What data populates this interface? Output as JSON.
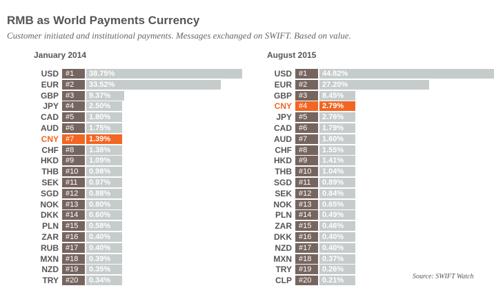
{
  "title": "RMB as World Payments Currency",
  "subtitle": "Customer initiated and institutional payments. Messages exchanged on SWIFT. Based on value.",
  "source": "Source: SWIFT Watch",
  "colors": {
    "highlight": "#f26522",
    "bar": "#c6cccc",
    "rank_box": "#76655f"
  },
  "chart_data": [
    {
      "type": "bar",
      "orientation": "horizontal",
      "title": "January 2014",
      "highlight": "CNY",
      "categories": [
        "USD",
        "EUR",
        "GBP",
        "JPY",
        "CAD",
        "AUD",
        "CNY",
        "CHF",
        "HKD",
        "THB",
        "SEK",
        "SGD",
        "NOK",
        "DKK",
        "PLN",
        "ZAR",
        "RUB",
        "MXN",
        "NZD",
        "TRY"
      ],
      "ranks": [
        "#1",
        "#2",
        "#3",
        "#4",
        "#5",
        "#6",
        "#7",
        "#8",
        "#9",
        "#10",
        "#11",
        "#12",
        "#13",
        "#14",
        "#15",
        "#16",
        "#17",
        "#18",
        "#19",
        "#20"
      ],
      "labels": [
        "38.75%",
        "33.52%",
        "9.37%",
        "2.50%",
        "1.80%",
        "1.75%",
        "1.39%",
        "1.38%",
        "1.09%",
        "0.98%",
        "0.97%",
        "0.88%",
        "0.80%",
        "0.60%",
        "0.58%",
        "0.40%",
        "0.40%",
        "0.39%",
        "0.35%",
        "0.34%"
      ],
      "values": [
        38.75,
        33.52,
        9.37,
        2.5,
        1.8,
        1.75,
        1.39,
        1.38,
        1.09,
        0.98,
        0.97,
        0.88,
        0.8,
        0.6,
        0.58,
        0.4,
        0.4,
        0.39,
        0.35,
        0.34
      ]
    },
    {
      "type": "bar",
      "orientation": "horizontal",
      "title": "August 2015",
      "highlight": "CNY",
      "categories": [
        "USD",
        "EUR",
        "GBP",
        "CNY",
        "JPY",
        "CAD",
        "AUD",
        "CHF",
        "HKD",
        "THB",
        "SGD",
        "SEK",
        "NOK",
        "PLN",
        "ZAR",
        "DKK",
        "NZD",
        "MXN",
        "TRY",
        "CLP"
      ],
      "ranks": [
        "#1",
        "#2",
        "#3",
        "#4",
        "#5",
        "#6",
        "#7",
        "#8",
        "#9",
        "#10",
        "#11",
        "#12",
        "#13",
        "#14",
        "#15",
        "#16",
        "#17",
        "#18",
        "#19",
        "#20"
      ],
      "labels": [
        "44.82%",
        "27.20%",
        "8.45%",
        "2.79%",
        "2.76%",
        "1.79%",
        "1.60%",
        "1.55%",
        "1.41%",
        "1.04%",
        "0.89%",
        "0.84%",
        "0.65%",
        "0.49%",
        "0.46%",
        "0.40%",
        "0.40%",
        "0.37%",
        "0.26%",
        "0.21%"
      ],
      "values": [
        44.82,
        27.2,
        8.45,
        2.79,
        2.76,
        1.79,
        1.6,
        1.55,
        1.41,
        1.04,
        0.89,
        0.84,
        0.65,
        0.49,
        0.46,
        0.4,
        0.4,
        0.37,
        0.26,
        0.21
      ]
    }
  ]
}
